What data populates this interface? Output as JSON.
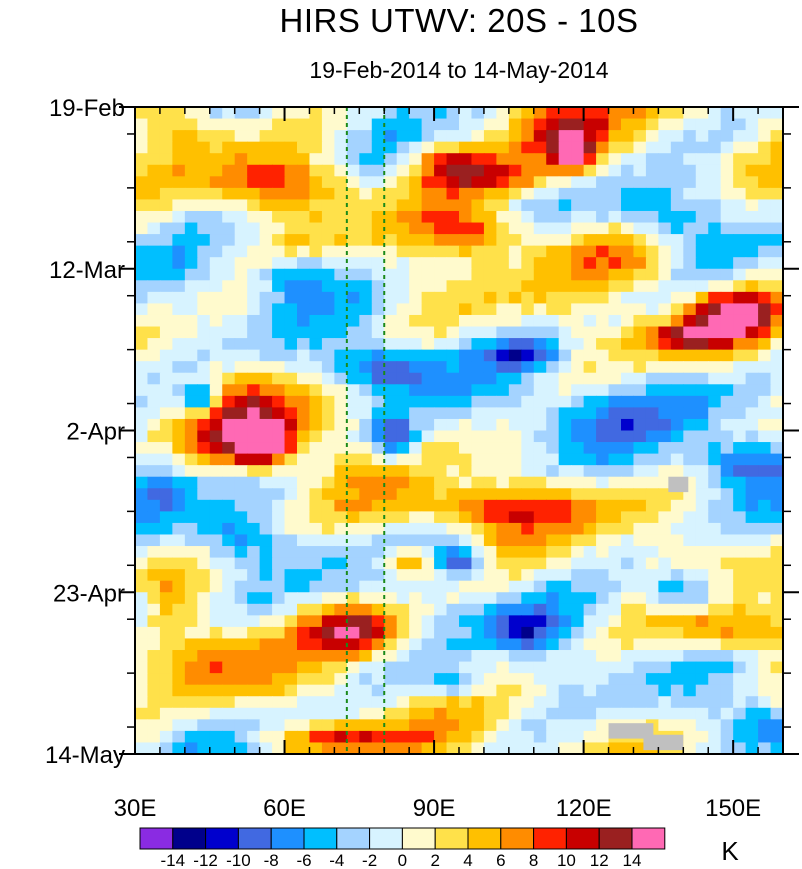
{
  "chart_data": {
    "type": "heatmap",
    "title": "HIRS UTWV: 20S - 10S",
    "subtitle": "19-Feb-2014 to 14-May-2014",
    "x_ticks": [
      {
        "value": 30,
        "label": "30E"
      },
      {
        "value": 60,
        "label": "60E"
      },
      {
        "value": 90,
        "label": "90E"
      },
      {
        "value": 120,
        "label": "120E"
      },
      {
        "value": 150,
        "label": "150E"
      }
    ],
    "xlim": [
      30,
      160
    ],
    "y_ticks": [
      {
        "value": 0,
        "label": "19-Feb"
      },
      {
        "value": 21,
        "label": "12-Mar"
      },
      {
        "value": 42,
        "label": "2-Apr"
      },
      {
        "value": 63,
        "label": "23-Apr"
      },
      {
        "value": 84,
        "label": "14-May"
      }
    ],
    "ylim_days": [
      0,
      84
    ],
    "reference_lines_lon": [
      72.5,
      80
    ],
    "colorbar": {
      "unit": "K",
      "levels": [
        -14,
        -12,
        -10,
        -8,
        -6,
        -4,
        -2,
        0,
        2,
        4,
        6,
        8,
        10,
        12,
        14
      ],
      "labels": [
        "-14",
        "-12",
        "-10",
        "-8",
        "-6",
        "-4",
        "-2",
        "0",
        "2",
        "4",
        "6",
        "8",
        "10",
        "12",
        "14"
      ],
      "colors": [
        "#8a2be2",
        "#00008b",
        "#0000cd",
        "#4169e1",
        "#1e90ff",
        "#00bfff",
        "#a4d3ff",
        "#d7f3ff",
        "#fffacd",
        "#ffe14a",
        "#ffc000",
        "#ff8c00",
        "#ff2200",
        "#c80000",
        "#9a2020",
        "#ff69b4"
      ]
    },
    "missing_color": "#c0c0c0",
    "anomaly_blobs": [
      {
        "lon": 115,
        "day": 3,
        "value": 12,
        "rlon": 10,
        "rday": 4
      },
      {
        "lon": 118,
        "day": 6,
        "value": 14,
        "rlon": 4,
        "rday": 2
      },
      {
        "lon": 105,
        "day": 9,
        "value": 9,
        "rlon": 14,
        "rday": 3
      },
      {
        "lon": 92,
        "day": 7,
        "value": 8,
        "rlon": 8,
        "rday": 3
      },
      {
        "lon": 60,
        "day": 10,
        "value": 8,
        "rlon": 14,
        "rday": 3
      },
      {
        "lon": 98,
        "day": 16,
        "value": 9,
        "rlon": 12,
        "rday": 3
      },
      {
        "lon": 150,
        "day": 27,
        "value": 14,
        "rlon": 9,
        "rday": 3
      },
      {
        "lon": 140,
        "day": 30,
        "value": 9,
        "rlon": 9,
        "rday": 2
      },
      {
        "lon": 55,
        "day": 44,
        "value": 14,
        "rlon": 7,
        "rday": 3
      },
      {
        "lon": 55,
        "day": 41,
        "value": 8,
        "rlon": 14,
        "rday": 5
      },
      {
        "lon": 100,
        "day": 52,
        "value": 8,
        "rlon": 22,
        "rday": 3
      },
      {
        "lon": 75,
        "day": 68,
        "value": 12,
        "rlon": 10,
        "rday": 3
      },
      {
        "lon": 150,
        "day": 68,
        "value": 9,
        "rlon": 12,
        "rday": 3
      },
      {
        "lon": 72,
        "day": 82,
        "value": 9,
        "rlon": 16,
        "rday": 2
      },
      {
        "lon": 45,
        "day": 72,
        "value": 6,
        "rlon": 12,
        "rday": 5
      },
      {
        "lon": 40,
        "day": 2,
        "value": 5,
        "rlon": 8,
        "rday": 4
      },
      {
        "lon": 130,
        "day": 20,
        "value": 6,
        "rlon": 10,
        "rday": 4
      },
      {
        "lon": 85,
        "day": 59,
        "value": 8,
        "rlon": 6,
        "rday": 2
      },
      {
        "lon": 62,
        "day": 22,
        "value": -8,
        "rlon": 8,
        "rday": 3
      },
      {
        "lon": 80,
        "day": 34,
        "value": -10,
        "rlon": 10,
        "rday": 3
      },
      {
        "lon": 43,
        "day": 38,
        "value": -12,
        "rlon": 4,
        "rday": 2
      },
      {
        "lon": 82,
        "day": 43,
        "value": -12,
        "rlon": 5,
        "rday": 3
      },
      {
        "lon": 95,
        "day": 59,
        "value": -12,
        "rlon": 5,
        "rday": 2
      },
      {
        "lon": 108,
        "day": 32,
        "value": -8,
        "rlon": 8,
        "rday": 2
      },
      {
        "lon": 150,
        "day": 46,
        "value": -8,
        "rlon": 10,
        "rday": 3
      },
      {
        "lon": 140,
        "day": 63,
        "value": -10,
        "rlon": 8,
        "rday": 3
      },
      {
        "lon": 108,
        "day": 68,
        "value": -8,
        "rlon": 8,
        "rday": 3
      },
      {
        "lon": 95,
        "day": 75,
        "value": -8,
        "rlon": 8,
        "rday": 2
      },
      {
        "lon": 30,
        "day": 65,
        "value": -8,
        "rlon": 4,
        "rday": 3
      },
      {
        "lon": 135,
        "day": 14,
        "value": -6,
        "rlon": 10,
        "rday": 3
      },
      {
        "lon": 120,
        "day": 40,
        "value": -5,
        "rlon": 14,
        "rday": 4
      },
      {
        "lon": 35,
        "day": 49,
        "value": -6,
        "rlon": 6,
        "rday": 4
      },
      {
        "lon": 50,
        "day": 56,
        "value": -6,
        "rlon": 8,
        "rday": 3
      },
      {
        "lon": 155,
        "day": 80,
        "value": -6,
        "rlon": 8,
        "rday": 3
      },
      {
        "lon": 145,
        "day": 38,
        "value": -4,
        "rlon": 14,
        "rday": 5
      }
    ],
    "missing_regions": [
      {
        "lon_start": 137,
        "lon_end": 141,
        "day_start": 48,
        "day_end": 50
      },
      {
        "lon_start": 125,
        "lon_end": 134,
        "day_start": 80,
        "day_end": 82
      },
      {
        "lon_start": 132,
        "lon_end": 140,
        "day_start": 81.5,
        "day_end": 83.5
      }
    ]
  }
}
